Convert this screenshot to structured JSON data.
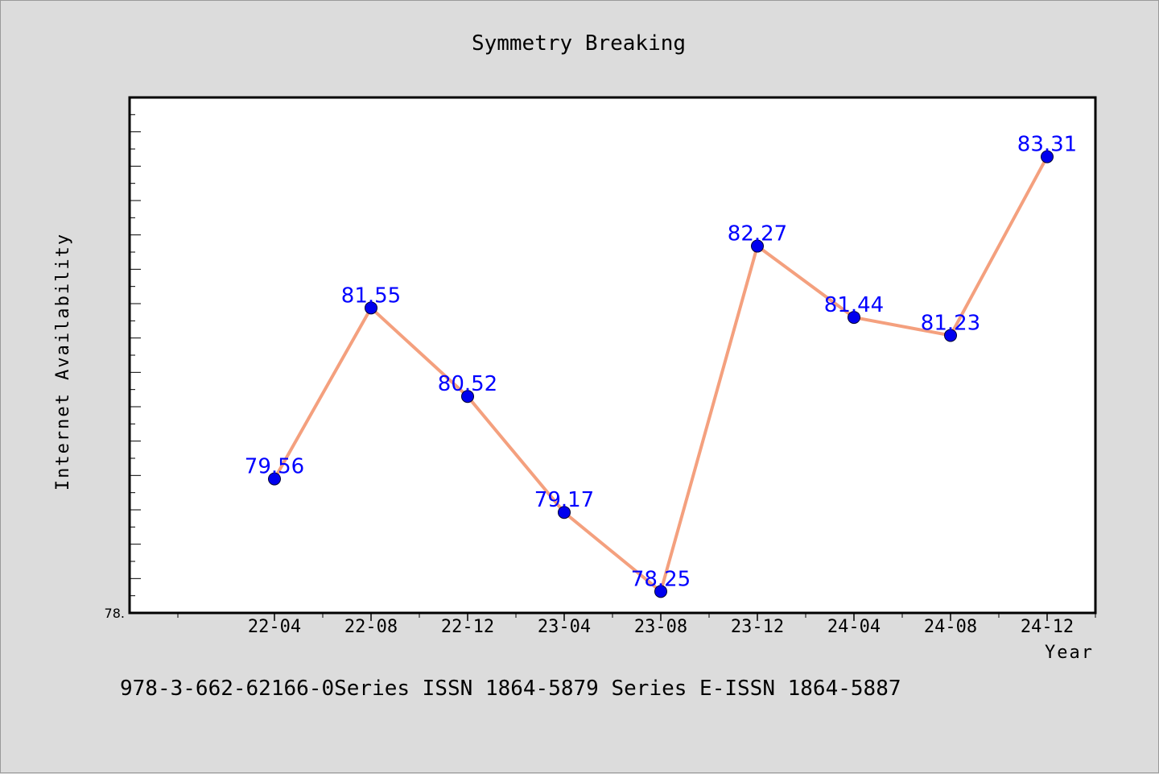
{
  "chart_data": {
    "type": "line",
    "title": "Symmetry Breaking",
    "xlabel": "Year",
    "ylabel": "Internet Availability",
    "categories": [
      "22-04",
      "22-08",
      "22-12",
      "23-04",
      "23-08",
      "23-12",
      "24-04",
      "24-08",
      "24-12"
    ],
    "series": [
      {
        "values": [
          79.56,
          81.55,
          80.52,
          79.17,
          78.25,
          82.27,
          81.44,
          81.23,
          83.31
        ],
        "color": "#f4a07e",
        "marker_color": "#0000ee"
      }
    ],
    "data_labels": [
      "79.56",
      "81.55",
      "80.52",
      "79.17",
      "78.25",
      "82.27",
      "81.44",
      "81.23",
      "83.31"
    ],
    "y_tick_labels": [
      "78."
    ],
    "ylim": [
      78.0,
      84.0
    ],
    "grid": false,
    "label_color": "#0000ff",
    "background": "#dcdcdc",
    "plot_background": "#ffffff"
  },
  "footer": {
    "text": "978-3-662-62166-0Series ISSN 1864-5879 Series E-ISSN 1864-5887"
  }
}
